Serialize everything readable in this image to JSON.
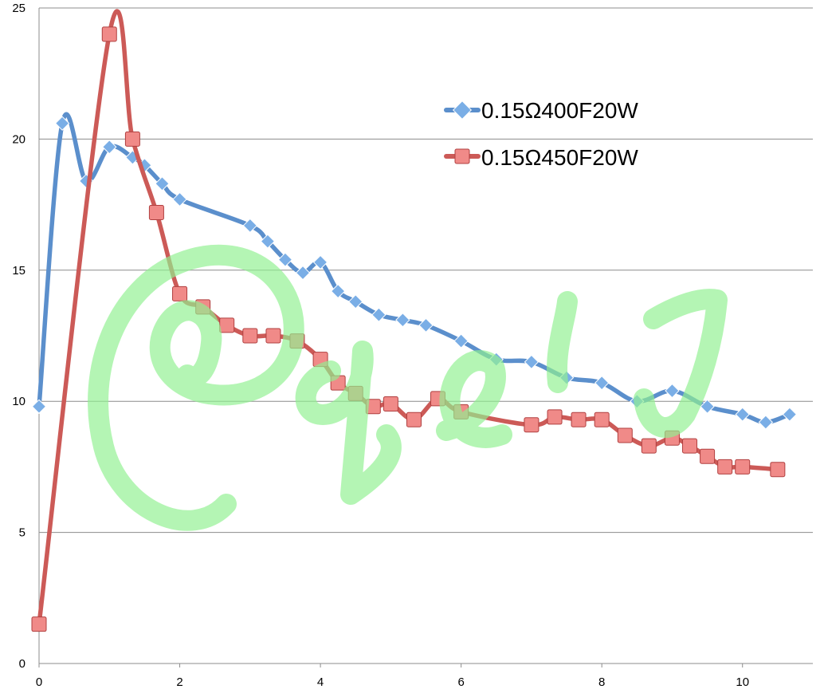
{
  "chart_data": {
    "type": "line",
    "title": "",
    "xlabel": "",
    "ylabel": "",
    "xlim": [
      0,
      11
    ],
    "ylim": [
      0,
      25
    ],
    "x_ticks": [
      0,
      2,
      4,
      6,
      8,
      10
    ],
    "y_ticks": [
      0,
      5,
      10,
      15,
      20,
      25
    ],
    "grid": "horizontal",
    "smooth": true,
    "legend_position": "top-right",
    "series": [
      {
        "name": "0.15Ω400F20W",
        "color": "#5b8fcc",
        "marker": "diamond",
        "x": [
          0,
          0.33,
          0.67,
          1.0,
          1.33,
          1.5,
          1.75,
          2.0,
          3.0,
          3.25,
          3.5,
          3.75,
          4.0,
          4.25,
          4.5,
          4.83,
          5.17,
          5.5,
          6.0,
          6.5,
          7.0,
          7.5,
          8.0,
          8.5,
          9.0,
          9.5,
          10.0,
          10.33,
          10.67
        ],
        "y": [
          9.8,
          20.6,
          18.4,
          19.7,
          19.3,
          19.0,
          18.3,
          17.7,
          16.7,
          16.1,
          15.4,
          14.9,
          15.3,
          14.2,
          13.8,
          13.3,
          13.1,
          12.9,
          12.3,
          11.6,
          11.5,
          10.9,
          10.7,
          10.0,
          10.4,
          9.8,
          9.5,
          9.2,
          9.5
        ]
      },
      {
        "name": "0.15Ω450F20W",
        "color": "#cc5a57",
        "marker": "square",
        "x": [
          0,
          1.0,
          1.33,
          1.67,
          2.0,
          2.33,
          2.67,
          3.0,
          3.33,
          3.67,
          4.0,
          4.25,
          4.5,
          4.75,
          5.0,
          5.33,
          5.67,
          6.0,
          7.0,
          7.33,
          7.67,
          8.0,
          8.33,
          8.67,
          9.0,
          9.25,
          9.5,
          9.75,
          10.0,
          10.5
        ],
        "y": [
          1.5,
          24.0,
          20.0,
          17.2,
          14.1,
          13.6,
          12.9,
          12.5,
          12.5,
          12.3,
          11.6,
          10.7,
          10.3,
          9.8,
          9.9,
          9.3,
          10.1,
          9.6,
          9.1,
          9.4,
          9.3,
          9.3,
          8.7,
          8.3,
          8.6,
          8.3,
          7.9,
          7.5,
          7.5,
          7.4
        ]
      }
    ]
  }
}
